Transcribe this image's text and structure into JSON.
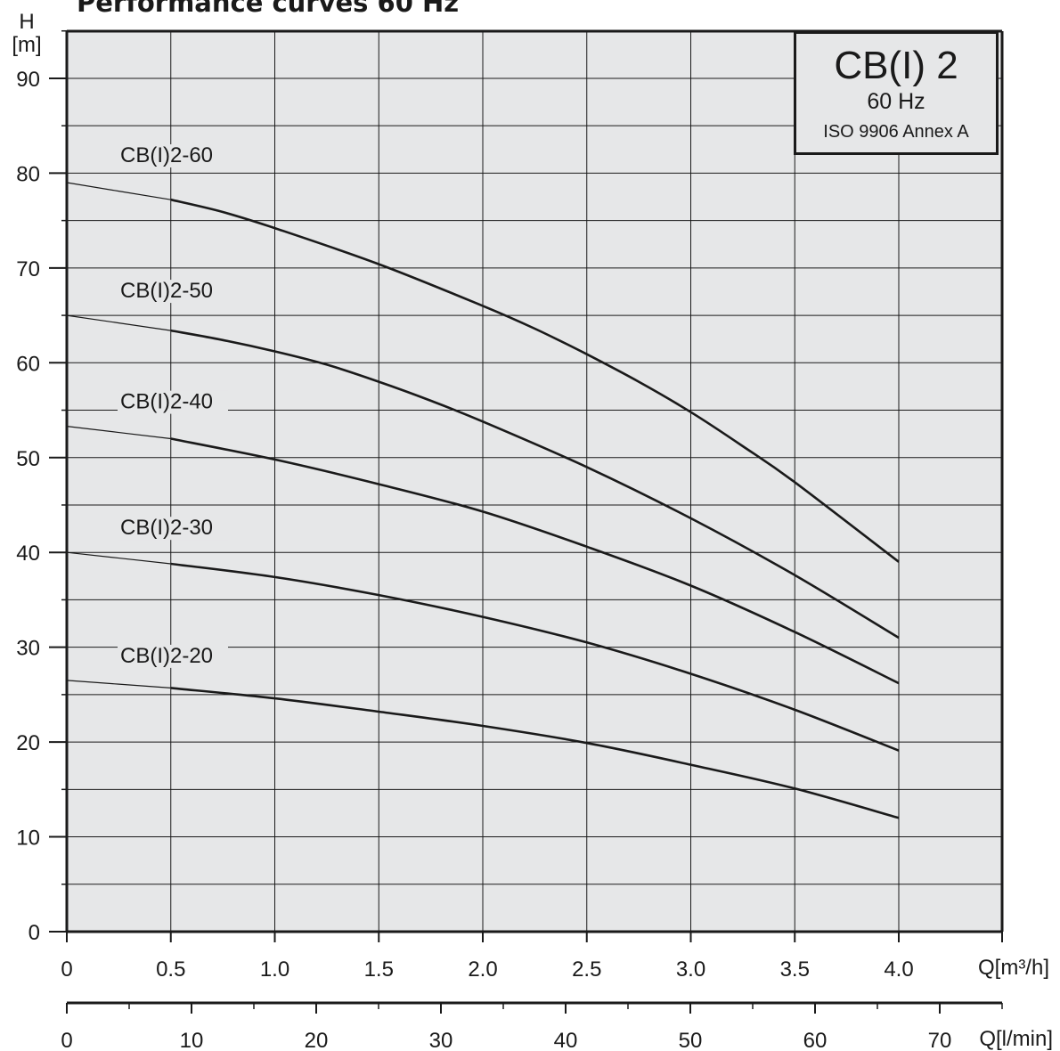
{
  "title": "Performance curves 60 Hz",
  "info_box": {
    "model": "CB(I) 2",
    "frequency": "60 Hz",
    "standard": "ISO 9906 Annex A"
  },
  "colors": {
    "plot_background": "#e6e7e8",
    "grid": "#1a1a1a",
    "curve": "#1a1a1a",
    "text": "#1a1a1a"
  },
  "chart_data": {
    "type": "line",
    "title": "Performance curves 60 Hz",
    "ylabel": "H",
    "yunit": "[m]",
    "ylim": [
      0,
      95
    ],
    "yticks": [
      0,
      10,
      20,
      30,
      40,
      50,
      60,
      70,
      80,
      90
    ],
    "xlabel": "Q[m³/h]",
    "xlim": [
      0,
      4.5
    ],
    "xticks": [
      0,
      0.5,
      1.0,
      1.5,
      2.0,
      2.5,
      3.0,
      3.5,
      4.0
    ],
    "xtick_labels": [
      "0",
      "0.5",
      "1.0",
      "1.5",
      "2.0",
      "2.5",
      "3.0",
      "3.5",
      "4.0"
    ],
    "x2label": "Q[l/min]",
    "x2ticks": [
      0,
      10,
      20,
      30,
      40,
      50,
      60,
      70
    ],
    "x2tick_labels": [
      "0",
      "10",
      "20",
      "30",
      "40",
      "50",
      "60",
      "70"
    ],
    "grid": true,
    "series": [
      {
        "name": "CB(I)2-60",
        "x": [
          0,
          0.5,
          0.75,
          1.0,
          1.5,
          2.0,
          2.25,
          2.5,
          2.75,
          3.0,
          3.25,
          3.5,
          4.0
        ],
        "y": [
          79.0,
          77.2,
          75.9,
          74.2,
          70.4,
          66.0,
          63.6,
          60.9,
          58.0,
          54.8,
          51.2,
          47.4,
          39.0
        ]
      },
      {
        "name": "CB(I)2-50",
        "x": [
          0,
          0.5,
          0.75,
          1.0,
          1.25,
          1.5,
          1.75,
          2.0,
          2.5,
          3.0,
          3.5,
          4.0
        ],
        "y": [
          65.0,
          63.4,
          62.4,
          61.2,
          59.8,
          58.0,
          56.0,
          53.8,
          49.0,
          43.6,
          37.6,
          31.0
        ]
      },
      {
        "name": "CB(I)2-40",
        "x": [
          0,
          0.5,
          1.0,
          1.5,
          2.0,
          2.5,
          3.0,
          3.5,
          4.0
        ],
        "y": [
          53.3,
          52.0,
          49.8,
          47.2,
          44.3,
          40.6,
          36.5,
          31.6,
          26.2
        ]
      },
      {
        "name": "CB(I)2-30",
        "x": [
          0,
          0.5,
          1.0,
          1.5,
          2.0,
          2.5,
          3.0,
          3.5,
          4.0
        ],
        "y": [
          40.0,
          38.8,
          37.4,
          35.5,
          33.2,
          30.5,
          27.2,
          23.4,
          19.1
        ]
      },
      {
        "name": "CB(I)2-20",
        "x": [
          0,
          0.5,
          1.0,
          1.5,
          2.0,
          2.5,
          3.0,
          3.5,
          4.0
        ],
        "y": [
          26.5,
          25.7,
          24.6,
          23.2,
          21.7,
          19.9,
          17.6,
          15.1,
          12.0
        ]
      }
    ]
  }
}
